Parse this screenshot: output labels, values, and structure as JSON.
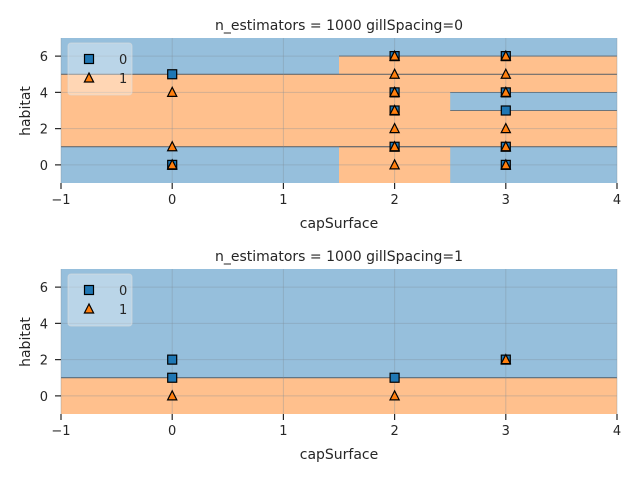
{
  "chart_data": [
    {
      "type": "scatter",
      "title": "n_estimators = 1000 gillSpacing=0",
      "xlabel": "capSurface",
      "ylabel": "habitat",
      "xlim": [
        -1,
        4
      ],
      "ylim": [
        -1,
        7
      ],
      "xticks": [
        -1,
        0,
        1,
        2,
        3,
        4
      ],
      "yticks": [
        0,
        2,
        4,
        6
      ],
      "grid": true,
      "legend_position": "top-left",
      "colors": {
        "class0": "#1f77b4",
        "class1": "#ff7f0e",
        "region0": "#96bfdc",
        "region1": "#ffc08d"
      },
      "series": [
        {
          "name": "0",
          "marker": "square",
          "points": [
            [
              0,
              5
            ],
            [
              0,
              0
            ],
            [
              2,
              6
            ],
            [
              2,
              4
            ],
            [
              2,
              3
            ],
            [
              2,
              1
            ],
            [
              3,
              6
            ],
            [
              3,
              4
            ],
            [
              3,
              3
            ],
            [
              3,
              1
            ],
            [
              3,
              0
            ]
          ]
        },
        {
          "name": "1",
          "marker": "triangle",
          "points": [
            [
              0,
              4
            ],
            [
              0,
              1
            ],
            [
              0,
              0
            ],
            [
              2,
              6
            ],
            [
              2,
              5
            ],
            [
              2,
              4
            ],
            [
              2,
              3
            ],
            [
              2,
              2
            ],
            [
              2,
              1
            ],
            [
              2,
              0
            ],
            [
              3,
              6
            ],
            [
              3,
              5
            ],
            [
              3,
              4
            ],
            [
              3,
              2
            ],
            [
              3,
              1
            ],
            [
              3,
              0
            ]
          ]
        }
      ],
      "decision_regions": [
        {
          "x": [
            -1,
            4
          ],
          "y": [
            -1,
            1
          ],
          "class": 0
        },
        {
          "x": [
            -1,
            4
          ],
          "y": [
            1,
            5
          ],
          "class": 1
        },
        {
          "x": [
            -1,
            1.5
          ],
          "y": [
            5,
            7
          ],
          "class": 0
        },
        {
          "x": [
            1.5,
            4
          ],
          "y": [
            5,
            6
          ],
          "class": 1
        },
        {
          "x": [
            1.5,
            4
          ],
          "y": [
            6,
            7
          ],
          "class": 0
        },
        {
          "x": [
            2.5,
            4
          ],
          "y": [
            3,
            4
          ],
          "class": 0
        },
        {
          "x": [
            1.5,
            2.5
          ],
          "y": [
            -1,
            1
          ],
          "class": 1
        }
      ]
    },
    {
      "type": "scatter",
      "title": "n_estimators = 1000 gillSpacing=1",
      "xlabel": "capSurface",
      "ylabel": "habitat",
      "xlim": [
        -1,
        4
      ],
      "ylim": [
        -1,
        7
      ],
      "xticks": [
        -1,
        0,
        1,
        2,
        3,
        4
      ],
      "yticks": [
        0,
        2,
        4,
        6
      ],
      "grid": true,
      "legend_position": "top-left",
      "colors": {
        "class0": "#1f77b4",
        "class1": "#ff7f0e",
        "region0": "#96bfdc",
        "region1": "#ffc08d"
      },
      "series": [
        {
          "name": "0",
          "marker": "square",
          "points": [
            [
              0,
              2
            ],
            [
              0,
              1
            ],
            [
              2,
              1
            ],
            [
              3,
              2
            ]
          ]
        },
        {
          "name": "1",
          "marker": "triangle",
          "points": [
            [
              0,
              0
            ],
            [
              2,
              0
            ],
            [
              3,
              2
            ]
          ]
        }
      ],
      "decision_regions": [
        {
          "x": [
            -1,
            4
          ],
          "y": [
            -1,
            1
          ],
          "class": 1
        },
        {
          "x": [
            -1,
            4
          ],
          "y": [
            1,
            7
          ],
          "class": 0
        }
      ]
    }
  ]
}
